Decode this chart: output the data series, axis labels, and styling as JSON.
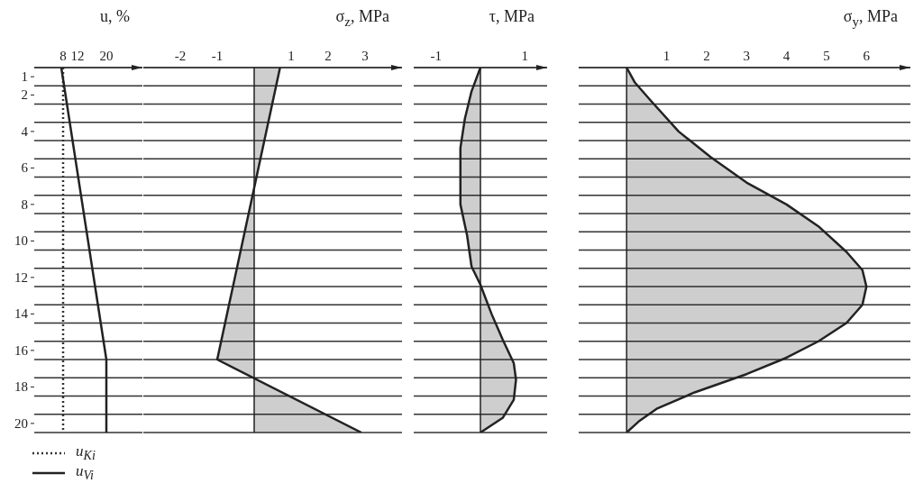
{
  "chart_data": [
    {
      "type": "line",
      "xlabel": "u, %",
      "xlim": [
        0,
        30
      ],
      "xticks": [
        8,
        12,
        20
      ],
      "ylim": [
        20.5,
        0.5
      ],
      "yticks": [
        {
          "value": 0.5,
          "label": null
        },
        1,
        {
          "value": 1.5,
          "label": null
        },
        2,
        {
          "value": 2.5,
          "label": null
        },
        {
          "value": 3.5,
          "label": null
        },
        4,
        {
          "value": 4.5,
          "label": null
        },
        {
          "value": 5.5,
          "label": null
        },
        6,
        {
          "value": 6.5,
          "label": null
        },
        {
          "value": 7.5,
          "label": null
        },
        8,
        {
          "value": 8.5,
          "label": null
        },
        {
          "value": 9.5,
          "label": null
        },
        10,
        {
          "value": 10.5,
          "label": null
        },
        {
          "value": 11.5,
          "label": null
        },
        12,
        {
          "value": 12.5,
          "label": null
        },
        {
          "value": 13.5,
          "label": null
        },
        14,
        {
          "value": 14.5,
          "label": null
        },
        {
          "value": 15.5,
          "label": null
        },
        16,
        {
          "value": 16.5,
          "label": null
        },
        {
          "value": 17.5,
          "label": null
        },
        18,
        {
          "value": 18.5,
          "label": null
        },
        {
          "value": 19.5,
          "label": null
        },
        20,
        {
          "value": 20.5,
          "label": null
        }
      ],
      "grid": "y",
      "legend": "bottom left",
      "series": [
        {
          "name": "u$_{Ki}$",
          "color": "#333333",
          "line_style": "dotted",
          "x": [
            8,
            8
          ],
          "values": [
            0.5,
            20.5
          ]
        },
        {
          "name": "u$_{Vi}$",
          "color": "#222222",
          "line_style": "solid",
          "x": [
            7.5,
            20,
            20
          ],
          "values": [
            0.5,
            16.5,
            20.5
          ]
        }
      ]
    },
    {
      "type": "area",
      "xlabel": "σ$_{z}$, MPa",
      "xlim": [
        -3,
        4
      ],
      "xticks": [
        -2,
        -1,
        1,
        2,
        3
      ],
      "ylim": [
        20.5,
        0.5
      ],
      "yticks": [
        {
          "value": 0.5,
          "label": null
        },
        {
          "value": 1.5,
          "label": null
        },
        {
          "value": 2.5,
          "label": null
        },
        {
          "value": 3.5,
          "label": null
        },
        {
          "value": 4.5,
          "label": null
        },
        {
          "value": 5.5,
          "label": null
        },
        {
          "value": 6.5,
          "label": null
        },
        {
          "value": 7.5,
          "label": null
        },
        {
          "value": 8.5,
          "label": null
        },
        {
          "value": 9.5,
          "label": null
        },
        {
          "value": 10.5,
          "label": null
        },
        {
          "value": 11.5,
          "label": null
        },
        {
          "value": 12.5,
          "label": null
        },
        {
          "value": 13.5,
          "label": null
        },
        {
          "value": 14.5,
          "label": null
        },
        {
          "value": 15.5,
          "label": null
        },
        {
          "value": 16.5,
          "label": null
        },
        {
          "value": 17.5,
          "label": null
        },
        {
          "value": 18.5,
          "label": null
        },
        {
          "value": 19.5,
          "label": null
        },
        {
          "value": 20.5,
          "label": null
        }
      ],
      "grid": "y",
      "tick_labels": "x",
      "ref_lines": [
        {
          "axis": "x",
          "value": 0
        }
      ],
      "series": [
        {
          "color": "#222222",
          "x": [
            0.7,
            -1,
            2.9
          ],
          "values": [
            0.5,
            16.5,
            20.5
          ]
        }
      ]
    },
    {
      "type": "area",
      "xlabel": "τ, MPa",
      "xlim": [
        -1.5,
        1.5
      ],
      "xticks": [
        -1,
        1
      ],
      "ylim": [
        20.5,
        0.5
      ],
      "yticks": [
        {
          "value": 0.5,
          "label": null
        },
        {
          "value": 1.5,
          "label": null
        },
        {
          "value": 2.5,
          "label": null
        },
        {
          "value": 3.5,
          "label": null
        },
        {
          "value": 4.5,
          "label": null
        },
        {
          "value": 5.5,
          "label": null
        },
        {
          "value": 6.5,
          "label": null
        },
        {
          "value": 7.5,
          "label": null
        },
        {
          "value": 8.5,
          "label": null
        },
        {
          "value": 9.5,
          "label": null
        },
        {
          "value": 10.5,
          "label": null
        },
        {
          "value": 11.5,
          "label": null
        },
        {
          "value": 12.5,
          "label": null
        },
        {
          "value": 13.5,
          "label": null
        },
        {
          "value": 14.5,
          "label": null
        },
        {
          "value": 15.5,
          "label": null
        },
        {
          "value": 16.5,
          "label": null
        },
        {
          "value": 17.5,
          "label": null
        },
        {
          "value": 18.5,
          "label": null
        },
        {
          "value": 19.5,
          "label": null
        },
        {
          "value": 20.5,
          "label": null
        }
      ],
      "grid": "y",
      "tick_labels": "x",
      "ref_lines": [
        {
          "axis": "x",
          "value": 0
        }
      ],
      "series": [
        {
          "color": "#222222",
          "x": [
            0,
            -0.2,
            -0.35,
            -0.45,
            -0.45,
            -0.45,
            -0.3,
            -0.2,
            0,
            0.25,
            0.5,
            0.75,
            0.8,
            0.75,
            0.5,
            0
          ],
          "values": [
            0.5,
            1.8,
            3.3,
            4.9,
            6.4,
            8,
            9.7,
            11.4,
            12.4,
            14,
            15.4,
            16.7,
            17.6,
            18.7,
            19.7,
            20.5
          ]
        }
      ]
    },
    {
      "type": "area",
      "xlabel": "σ$_{y}$, MPa",
      "xlim": [
        -1.2,
        7.1
      ],
      "xticks": [
        1,
        2,
        3,
        4,
        5,
        6
      ],
      "ylim": [
        20.5,
        0.5
      ],
      "yticks": [
        {
          "value": 0.5,
          "label": null
        },
        {
          "value": 1.5,
          "label": null
        },
        {
          "value": 2.5,
          "label": null
        },
        {
          "value": 3.5,
          "label": null
        },
        {
          "value": 4.5,
          "label": null
        },
        {
          "value": 5.5,
          "label": null
        },
        {
          "value": 6.5,
          "label": null
        },
        {
          "value": 7.5,
          "label": null
        },
        {
          "value": 8.5,
          "label": null
        },
        {
          "value": 9.5,
          "label": null
        },
        {
          "value": 10.5,
          "label": null
        },
        {
          "value": 11.5,
          "label": null
        },
        {
          "value": 12.5,
          "label": null
        },
        {
          "value": 13.5,
          "label": null
        },
        {
          "value": 14.5,
          "label": null
        },
        {
          "value": 15.5,
          "label": null
        },
        {
          "value": 16.5,
          "label": null
        },
        {
          "value": 17.5,
          "label": null
        },
        {
          "value": 18.5,
          "label": null
        },
        {
          "value": 19.5,
          "label": null
        },
        {
          "value": 20.5,
          "label": null
        }
      ],
      "grid": "y",
      "tick_labels": "x",
      "ref_lines": [
        {
          "axis": "x",
          "value": 0
        }
      ],
      "series": [
        {
          "color": "#222222",
          "x": [
            0,
            0.2,
            0.6,
            1.3,
            2.1,
            3,
            4,
            4.8,
            5.5,
            5.9,
            6,
            5.9,
            5.5,
            4.8,
            4,
            3,
            1.7,
            0.75,
            0.3,
            0
          ],
          "values": [
            0.5,
            1.3,
            2.3,
            4,
            5.4,
            6.8,
            8,
            9.2,
            10.6,
            11.6,
            12.5,
            13.5,
            14.5,
            15.5,
            16.4,
            17.3,
            18.3,
            19.2,
            19.9,
            20.5
          ]
        }
      ]
    }
  ]
}
